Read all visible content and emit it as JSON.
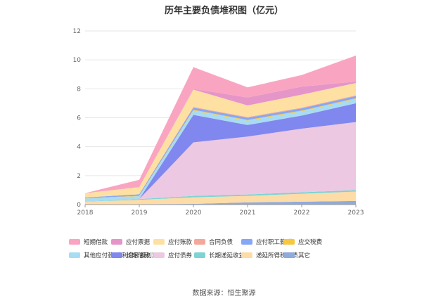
{
  "chart_data": {
    "type": "area",
    "stacked": true,
    "title": "历年主要负债堆积图（亿元）",
    "x": [
      "2018",
      "2019",
      "2020",
      "2021",
      "2022",
      "2023"
    ],
    "ylim": [
      0,
      12
    ],
    "yticks": [
      0,
      2,
      4,
      6,
      8,
      10,
      12
    ],
    "grid": true,
    "legend_position": "bottom",
    "series": [
      {
        "name": "其它",
        "color": "#8faadc",
        "values": [
          0.02,
          0.03,
          0.05,
          0.15,
          0.2,
          0.25
        ]
      },
      {
        "name": "递延所得税负债",
        "color": "#fddca8",
        "values": [
          0.18,
          0.3,
          0.45,
          0.45,
          0.55,
          0.65
        ]
      },
      {
        "name": "长期递延收益",
        "color": "#7fd3d3",
        "values": [
          0.02,
          0.05,
          0.1,
          0.1,
          0.1,
          0.1
        ]
      },
      {
        "name": "应付债券",
        "color": "#ecc8e2",
        "values": [
          0,
          0,
          3.7,
          4.0,
          4.4,
          4.7
        ]
      },
      {
        "name": "长期借款",
        "color": "#8087ee",
        "values": [
          0,
          0,
          1.9,
          0.8,
          0.9,
          1.3
        ]
      },
      {
        "name": "其他应付款(含利息和股利)",
        "color": "#a8dcf2",
        "values": [
          0.2,
          0.2,
          0.3,
          0.3,
          0.3,
          0.3
        ]
      },
      {
        "name": "应交税费",
        "color": "#f6c842",
        "values": [
          0.02,
          0.03,
          0.05,
          0.05,
          0.05,
          0.05
        ]
      },
      {
        "name": "应付职工薪酬",
        "color": "#86a7f6",
        "values": [
          0.05,
          0.1,
          0.15,
          0.15,
          0.15,
          0.15
        ]
      },
      {
        "name": "合同负债",
        "color": "#f4a89b",
        "values": [
          0,
          0,
          0.05,
          0.05,
          0.05,
          0.05
        ]
      },
      {
        "name": "应付账款",
        "color": "#fde0a2",
        "values": [
          0.3,
          0.5,
          1.2,
          0.8,
          0.9,
          0.85
        ]
      },
      {
        "name": "应付票据",
        "color": "#e695c8",
        "values": [
          0,
          0,
          0.05,
          0.55,
          0.55,
          0.1
        ]
      },
      {
        "name": "短期借款",
        "color": "#f9a5c1",
        "values": [
          0,
          0.5,
          1.5,
          0.7,
          0.8,
          1.8
        ]
      }
    ],
    "legend_order": [
      "短期借款",
      "应付票据",
      "应付账款",
      "合同负债",
      "应付职工薪酬",
      "应交税费",
      "其他应付款(含利息和股利)",
      "长期借款",
      "应付债券",
      "长期递延收益",
      "递延所得税负债",
      "其它"
    ]
  },
  "source_text": "数据来源：恒生聚源"
}
